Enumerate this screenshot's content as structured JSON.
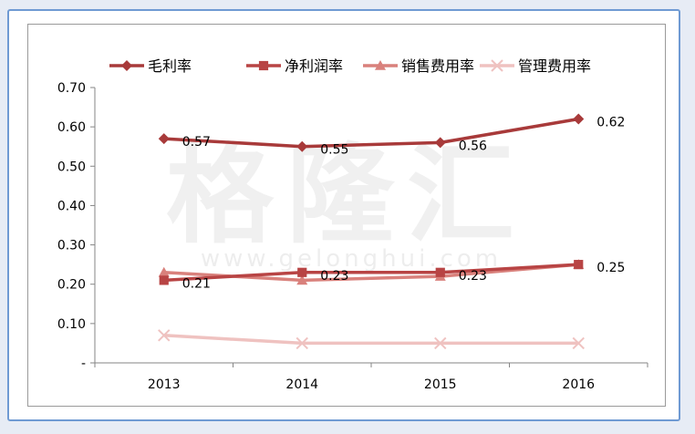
{
  "chart_data": {
    "type": "line",
    "categories": [
      "2013",
      "2014",
      "2015",
      "2016"
    ],
    "series": [
      {
        "name": "毛利率",
        "values": [
          0.57,
          0.55,
          0.56,
          0.62
        ],
        "color": "#a83a3a",
        "marker": "diamond",
        "labels": [
          "0.57",
          "0.55",
          "0.56",
          "0.62"
        ]
      },
      {
        "name": "净利润率",
        "values": [
          0.21,
          0.23,
          0.23,
          0.25
        ],
        "color": "#b84444",
        "marker": "square",
        "labels": [
          "0.21",
          "0.23",
          "0.23",
          "0.25"
        ]
      },
      {
        "name": "销售费用率",
        "values": [
          0.23,
          0.21,
          0.22,
          0.25
        ],
        "color": "#d9817c",
        "marker": "triangle",
        "labels": []
      },
      {
        "name": "管理费用率",
        "values": [
          0.07,
          0.05,
          0.05,
          0.05
        ],
        "color": "#efc2c0",
        "marker": "x",
        "labels": []
      }
    ],
    "y_ticks": [
      "-",
      "0.10",
      "0.20",
      "0.30",
      "0.40",
      "0.50",
      "0.60",
      "0.70"
    ],
    "ylim": [
      0,
      0.7
    ],
    "legend_position": "top",
    "grid": false
  },
  "watermark": {
    "main": "格隆汇",
    "url": "www.gelonghui.com"
  }
}
